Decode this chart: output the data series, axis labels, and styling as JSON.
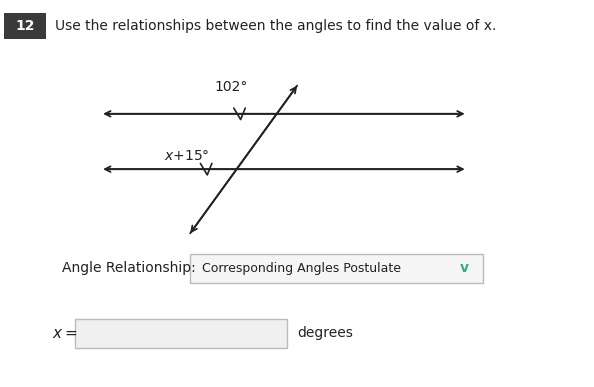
{
  "bg_color": "#ffffff",
  "problem_number": "12",
  "problem_number_bg": "#3a3a3a",
  "title_text_actual": "Use the relationships between the angles to find the value of x.",
  "angle_label_top": "102°",
  "angle_label_bottom": "x+15°",
  "relationship_label": "Angle Relationship:",
  "dropdown_text": "Corresponding Angles Postulate",
  "answer_suffix": "degrees",
  "text_color": "#222222",
  "line_color": "#222222",
  "chevron_color": "#3aaa8a",
  "dropdown_bg": "#f5f5f5",
  "answer_box_bg": "#f0f0f0"
}
